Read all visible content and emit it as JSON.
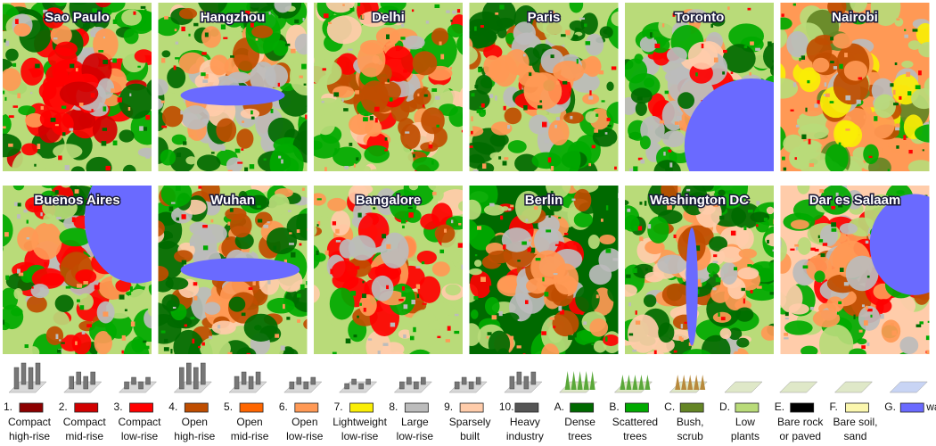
{
  "panels": [
    "Sao Paulo",
    "Hangzhou",
    "Delhi",
    "Paris",
    "Toronto",
    "Nairobi",
    "Buenos Aires",
    "Wuhan",
    "Bangalore",
    "Berlin",
    "Washington DC",
    "Dar es Salaam"
  ],
  "legend": [
    {
      "code": "1.",
      "color": "#8c0000",
      "label": [
        "Compact",
        "high-rise"
      ]
    },
    {
      "code": "2.",
      "color": "#d10000",
      "label": [
        "Compact",
        "mid-rise"
      ]
    },
    {
      "code": "3.",
      "color": "#ff0000",
      "label": [
        "Compact",
        "low-rise"
      ]
    },
    {
      "code": "4.",
      "color": "#bf4d00",
      "label": [
        "Open",
        "high-rise"
      ]
    },
    {
      "code": "5.",
      "color": "#ff6600",
      "label": [
        "Open",
        "mid-rise"
      ]
    },
    {
      "code": "6.",
      "color": "#ff9955",
      "label": [
        "Open",
        "low-rise"
      ]
    },
    {
      "code": "7.",
      "color": "#faee05",
      "label": [
        "Lightweight",
        "low-rise"
      ]
    },
    {
      "code": "8.",
      "color": "#bcbcbc",
      "label": [
        "Large",
        "low-rise"
      ]
    },
    {
      "code": "9.",
      "color": "#ffccaa",
      "label": [
        "Sparsely",
        "built"
      ]
    },
    {
      "code": "10.",
      "color": "#555555",
      "label": [
        "Heavy",
        "industry"
      ]
    },
    {
      "code": "A.",
      "color": "#006a00",
      "label": [
        "Dense",
        "trees"
      ]
    },
    {
      "code": "B.",
      "color": "#00aa00",
      "label": [
        "Scattered",
        "trees"
      ]
    },
    {
      "code": "C.",
      "color": "#648525",
      "label": [
        "Bush,",
        "scrub"
      ]
    },
    {
      "code": "D.",
      "color": "#b9db79",
      "label": [
        "Low",
        "plants"
      ]
    },
    {
      "code": "E.",
      "color": "#000000",
      "label": [
        "Bare rock",
        "or paved"
      ]
    },
    {
      "code": "F.",
      "color": "#fbf7ae",
      "label": [
        "Bare soil,",
        "sand"
      ]
    },
    {
      "code": "G.",
      "color": "#6a6aff",
      "label": [
        "water"
      ]
    }
  ]
}
